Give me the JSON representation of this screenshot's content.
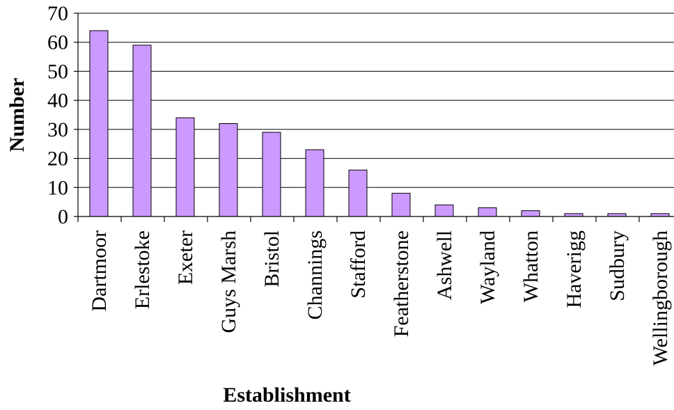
{
  "chart_data": {
    "type": "bar",
    "title": "",
    "xlabel": "Establishment",
    "ylabel": "Number",
    "categories": [
      "Dartmoor",
      "Erlestoke",
      "Exeter",
      "Guys Marsh",
      "Bristol",
      "Channings",
      "Stafford",
      "Featherstone",
      "Ashwell",
      "Wayland",
      "Whatton",
      "Haverigg",
      "Sudbury",
      "Wellingborough"
    ],
    "values": [
      64,
      59,
      34,
      32,
      29,
      23,
      16,
      8,
      4,
      3,
      2,
      1,
      1,
      1
    ],
    "yticks": [
      0,
      10,
      20,
      30,
      40,
      50,
      60,
      70
    ],
    "ylim": [
      0,
      70
    ],
    "grid": true,
    "legend": "none",
    "bar_color": "#cc99ff"
  }
}
